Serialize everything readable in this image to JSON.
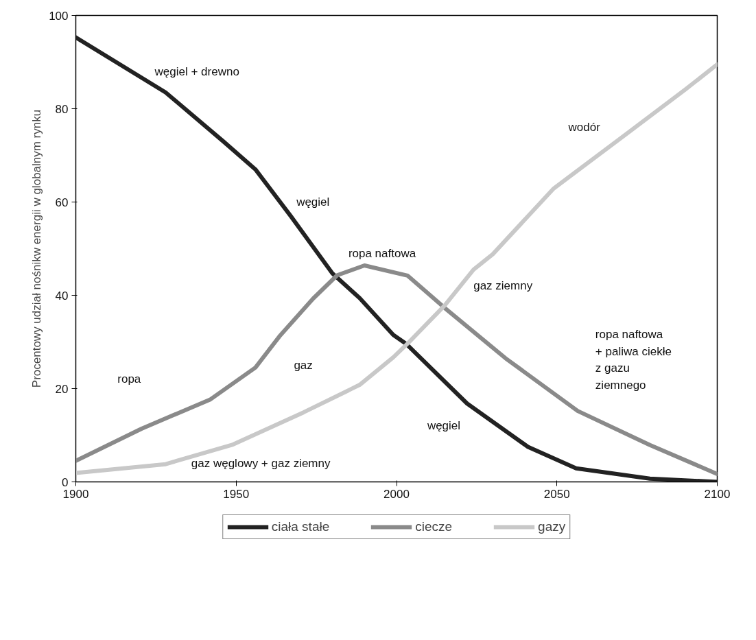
{
  "chart_data": {
    "type": "line",
    "ylabel": "Procentowy udział nośnikw energii w globalnym rynku",
    "xlim": [
      1900,
      2100
    ],
    "ylim": [
      0,
      100
    ],
    "xticks": [
      1900,
      1950,
      2000,
      2050,
      2100
    ],
    "yticks": [
      0,
      20,
      40,
      60,
      80,
      100
    ],
    "grid": false,
    "legend": "bottom",
    "marker": "none",
    "line_style": "solid",
    "series": [
      {
        "name": "ciała stałe",
        "color": "#222222",
        "x": [
          1900,
          1928,
          1946,
          1956,
          1967,
          1980,
          1988.5,
          1999,
          2003,
          2022,
          2041,
          2056,
          2079,
          2100
        ],
        "values": [
          95.3,
          83.5,
          73,
          67,
          57,
          44.7,
          39.4,
          31.5,
          29.6,
          16.8,
          7.5,
          2.9,
          0.7,
          0
        ]
      },
      {
        "name": "ciecze",
        "color": "#8a8a8a",
        "x": [
          1900,
          1920.5,
          1942,
          1956,
          1963.5,
          1974,
          1981.5,
          1990,
          2003.5,
          2015,
          2034,
          2056.5,
          2079,
          2100
        ],
        "values": [
          4.5,
          11.4,
          17.7,
          24.5,
          31.2,
          39.3,
          44.3,
          46.4,
          44.2,
          37.3,
          26.5,
          15.2,
          7.9,
          1.7
        ]
      },
      {
        "name": "gazy",
        "color": "#c8c8c8",
        "x": [
          1900,
          1928,
          1949,
          1971,
          1988.5,
          1999,
          2003.5,
          2015,
          2024,
          2030,
          2049,
          2071.5,
          2090,
          2100
        ],
        "values": [
          1.9,
          3.8,
          8,
          14.9,
          20.8,
          26.7,
          29.7,
          37.8,
          45.5,
          48.8,
          62.9,
          74.5,
          84.1,
          89.5
        ]
      }
    ],
    "annotations": [
      "węgiel + drewno",
      "węgiel",
      "ropa naftowa",
      "wodór",
      "gaz ziemny",
      "ropa",
      "gaz",
      "gaz węglowy + gaz ziemny",
      "węgiel",
      "ropa naftowa\n+ paliwa ciekłe\nz gazu\nziemnego"
    ]
  }
}
